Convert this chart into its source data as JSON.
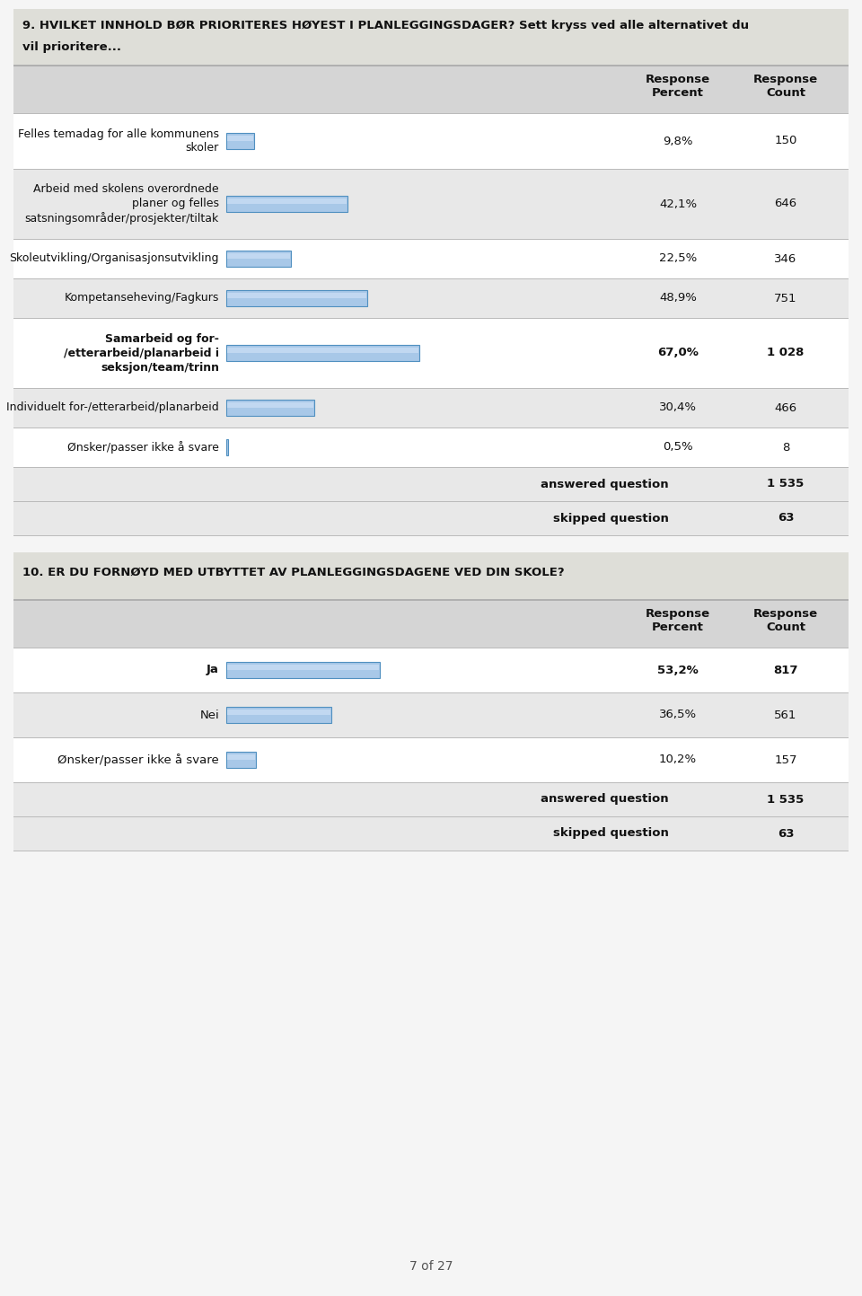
{
  "q9_title_line1": "9. HVILKET INNHOLD BØR PRIORITERES HØYEST I PLANLEGGINGSDAGER? Sett kryss ved alle alternativet du",
  "q9_title_line2": "vil prioritere...",
  "q9_rows": [
    {
      "label": "Felles temadag for alle kommunens\nskoler",
      "pct": 9.8,
      "pct_str": "9,8%",
      "count": "150",
      "bold": false
    },
    {
      "label": "Arbeid med skolens overordnede\nplaner og felles\nsatsningsområder/prosjekter/tiltak",
      "pct": 42.1,
      "pct_str": "42,1%",
      "count": "646",
      "bold": false
    },
    {
      "label": "Skoleutvikling/Organisasjonsutvikling",
      "pct": 22.5,
      "pct_str": "22,5%",
      "count": "346",
      "bold": false
    },
    {
      "label": "Kompetanseheving/Fagkurs",
      "pct": 48.9,
      "pct_str": "48,9%",
      "count": "751",
      "bold": false
    },
    {
      "label": "Samarbeid og for-\n/etterarbeid/planarbeid i\nseksjon/team/trinn",
      "pct": 67.0,
      "pct_str": "67,0%",
      "count": "1 028",
      "bold": true
    },
    {
      "label": "Individuelt for-/etterarbeid/planarbeid",
      "pct": 30.4,
      "pct_str": "30,4%",
      "count": "466",
      "bold": false
    },
    {
      "label": "Ønsker/passer ikke å svare",
      "pct": 0.5,
      "pct_str": "0,5%",
      "count": "8",
      "bold": false
    }
  ],
  "q9_answered": "1 535",
  "q9_skipped": "63",
  "q10_title": "10. ER DU FORNØYD MED UTBYTTET AV PLANLEGGINGSDAGENE VED DIN SKOLE?",
  "q10_rows": [
    {
      "label": "Ja",
      "pct": 53.2,
      "pct_str": "53,2%",
      "count": "817",
      "bold": true
    },
    {
      "label": "Nei",
      "pct": 36.5,
      "pct_str": "36,5%",
      "count": "561",
      "bold": false
    },
    {
      "label": "Ønsker/passer ikke å svare",
      "pct": 10.2,
      "pct_str": "10,2%",
      "count": "157",
      "bold": false
    }
  ],
  "q10_answered": "1 535",
  "q10_skipped": "63",
  "bar_color_face": "#a8c8e8",
  "bar_color_edge": "#5090c0",
  "bg_color_dark": "#d8d8d8",
  "bg_color_light": "#ebebeb",
  "row_white": "#ffffff",
  "row_gray": "#e8e8e8",
  "title_bg_color": "#deded8",
  "header_row_bg": "#d5d5d5",
  "page_bg": "#f2f2f2",
  "page_label": "7 of 27",
  "col_header_pct": "Response\nPercent",
  "col_header_count": "Response\nCount"
}
